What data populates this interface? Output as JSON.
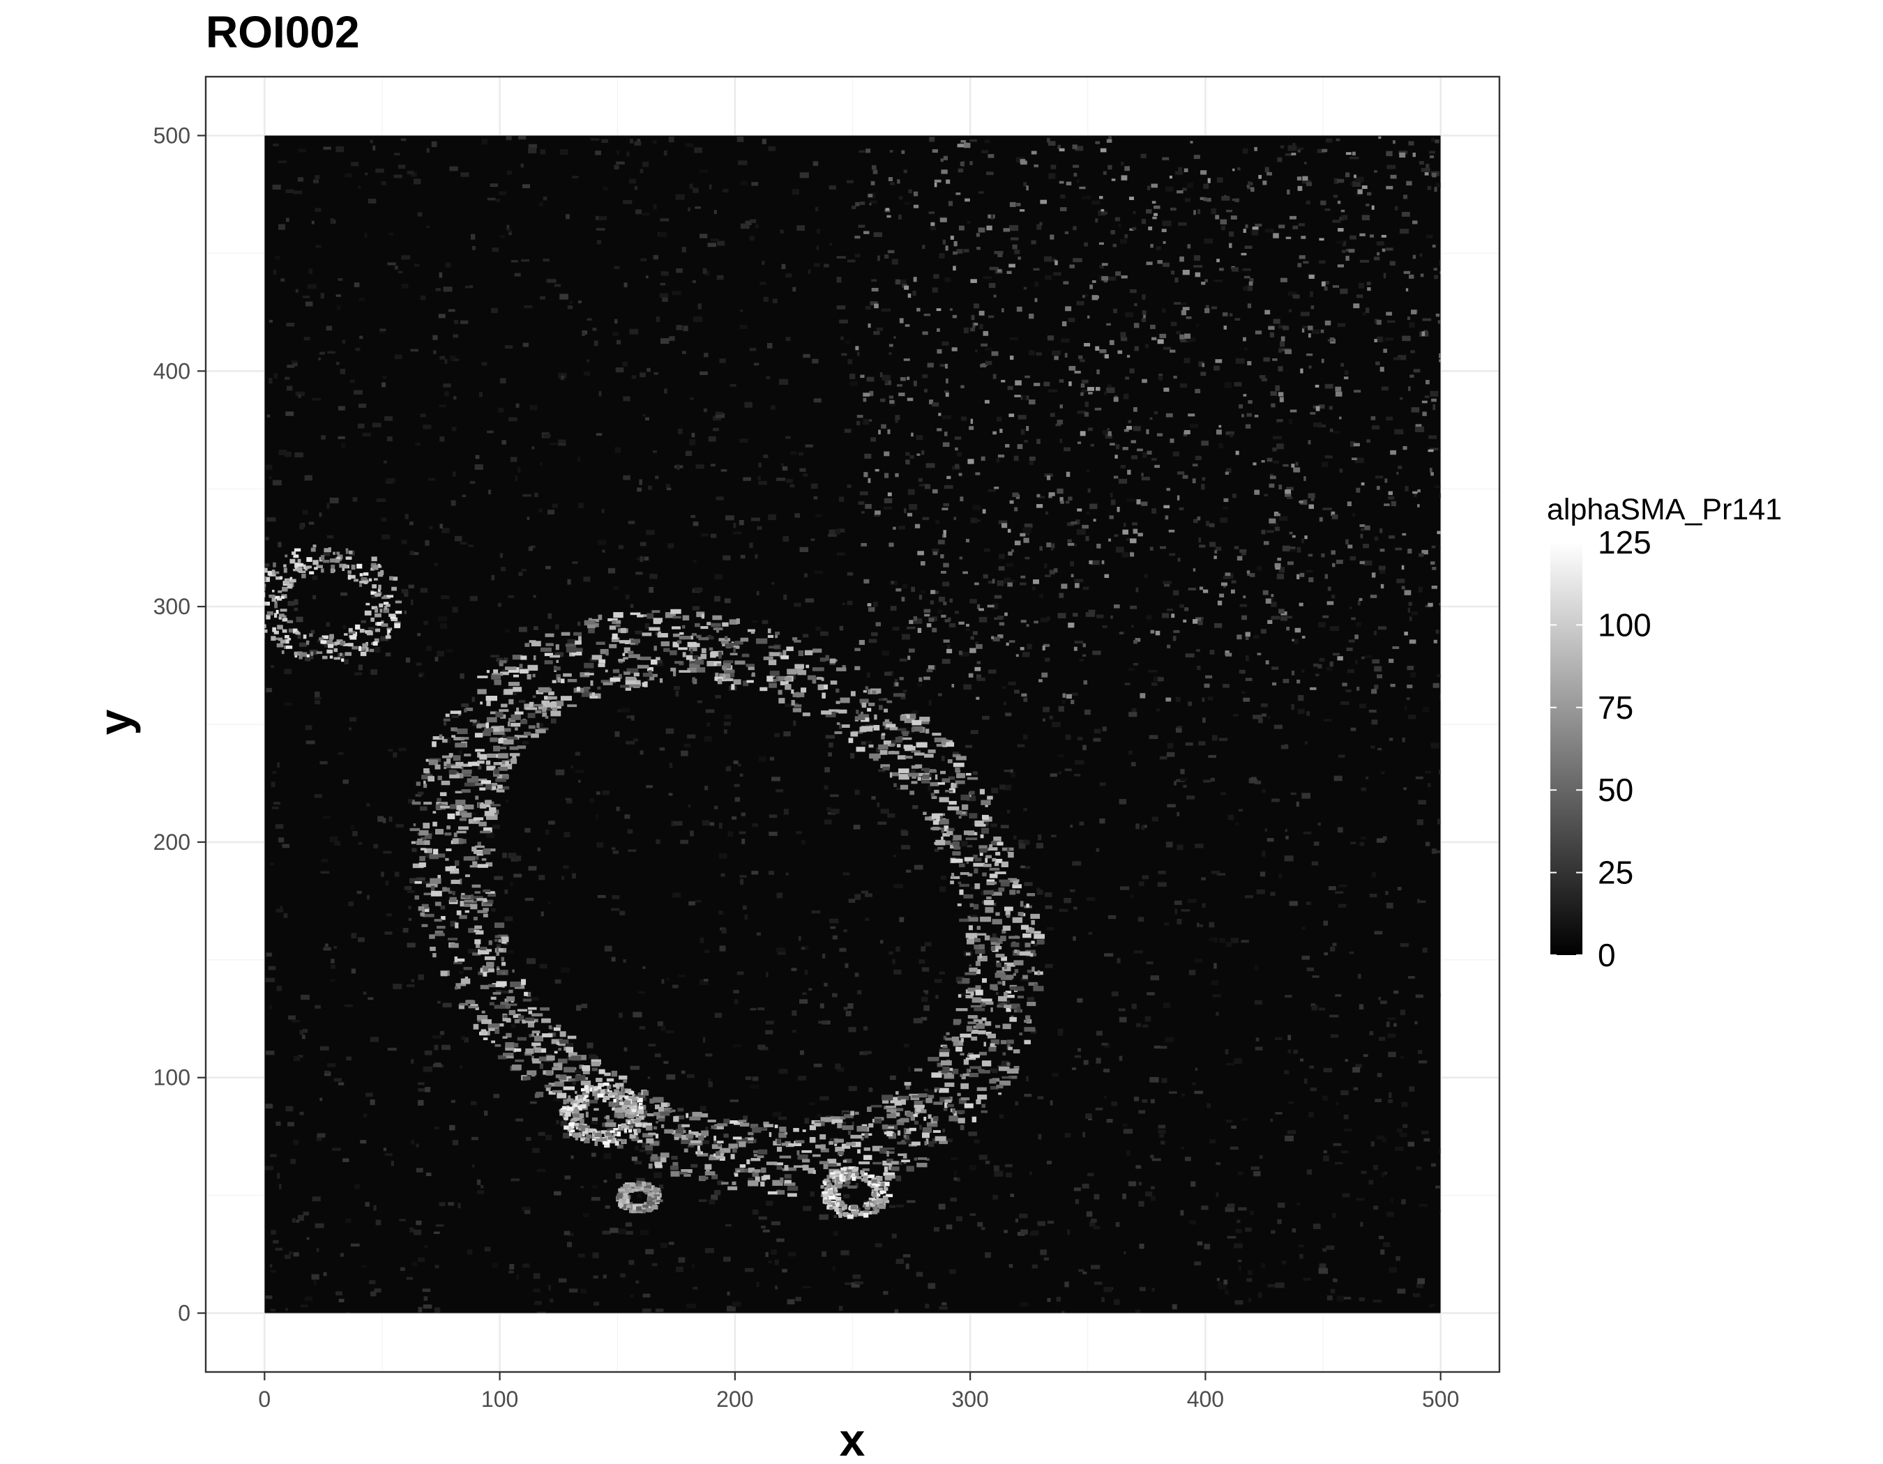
{
  "chart_data": {
    "type": "heatmap",
    "title": "ROI002",
    "xlabel": "x",
    "ylabel": "y",
    "xlim": [
      -25,
      525
    ],
    "ylim": [
      -25,
      525
    ],
    "raster_extent": {
      "x": [
        0,
        500
      ],
      "y": [
        0,
        500
      ]
    },
    "x_ticks": [
      0,
      100,
      200,
      300,
      400,
      500
    ],
    "y_ticks": [
      0,
      100,
      200,
      300,
      400,
      500
    ],
    "grid": true,
    "fill": {
      "name": "alphaSMA_Pr141",
      "limits": [
        0,
        125
      ],
      "breaks": [
        0,
        25,
        50,
        75,
        100,
        125
      ],
      "low_color": "#000000",
      "high_color": "#ffffff",
      "legend_position": "right"
    },
    "features": [
      {
        "type": "ring",
        "cx": 195,
        "cy": 175,
        "rx": 125,
        "ry": 125,
        "rot": -35,
        "intensity": 0.85,
        "description": ""
      },
      {
        "type": "vessel",
        "cx": 25,
        "cy": 302,
        "r": 30,
        "intensity": 0.95
      },
      {
        "type": "vessel",
        "cx": 143,
        "cy": 85,
        "r": 16,
        "intensity": 1.0
      },
      {
        "type": "vessel",
        "cx": 250,
        "cy": 52,
        "r": 13,
        "intensity": 1.0
      },
      {
        "type": "vessel",
        "cx": 158,
        "cy": 50,
        "r": 8,
        "intensity": 0.8
      }
    ]
  }
}
